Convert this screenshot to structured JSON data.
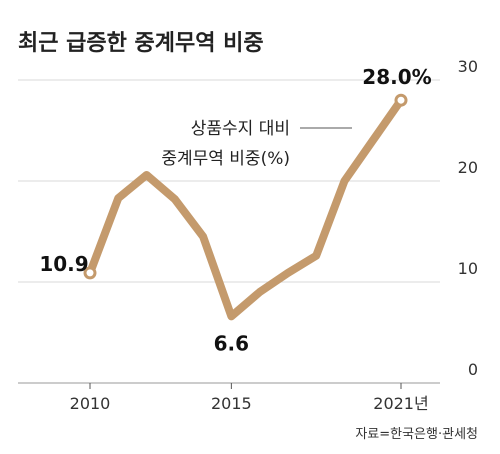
{
  "chart_data": {
    "type": "line",
    "title": "최근 급증한 중계무역 비중",
    "legend": [
      "상품수지 대비",
      "중계무역 비중(%)"
    ],
    "x_tick_labels": [
      "2010",
      "2015",
      "2021년"
    ],
    "y_tick_labels": [
      "0",
      "10",
      "20",
      "30"
    ],
    "ylim": [
      0,
      30
    ],
    "grid": true,
    "x": [
      2010,
      2011,
      2012,
      2013,
      2014,
      2015,
      2016,
      2017,
      2018,
      2019,
      2020,
      2021
    ],
    "values": [
      10.9,
      18.3,
      20.6,
      18.2,
      14.5,
      6.6,
      9.0,
      10.9,
      12.6,
      20.0,
      24.0,
      28.0
    ],
    "data_labels": [
      {
        "x": 2010,
        "text": "10.9"
      },
      {
        "x": 2015,
        "text": "6.6"
      },
      {
        "x": 2021,
        "text": "28.0%"
      }
    ],
    "source": "자료=한국은행·관세청",
    "line_color": "#c49a6c"
  }
}
